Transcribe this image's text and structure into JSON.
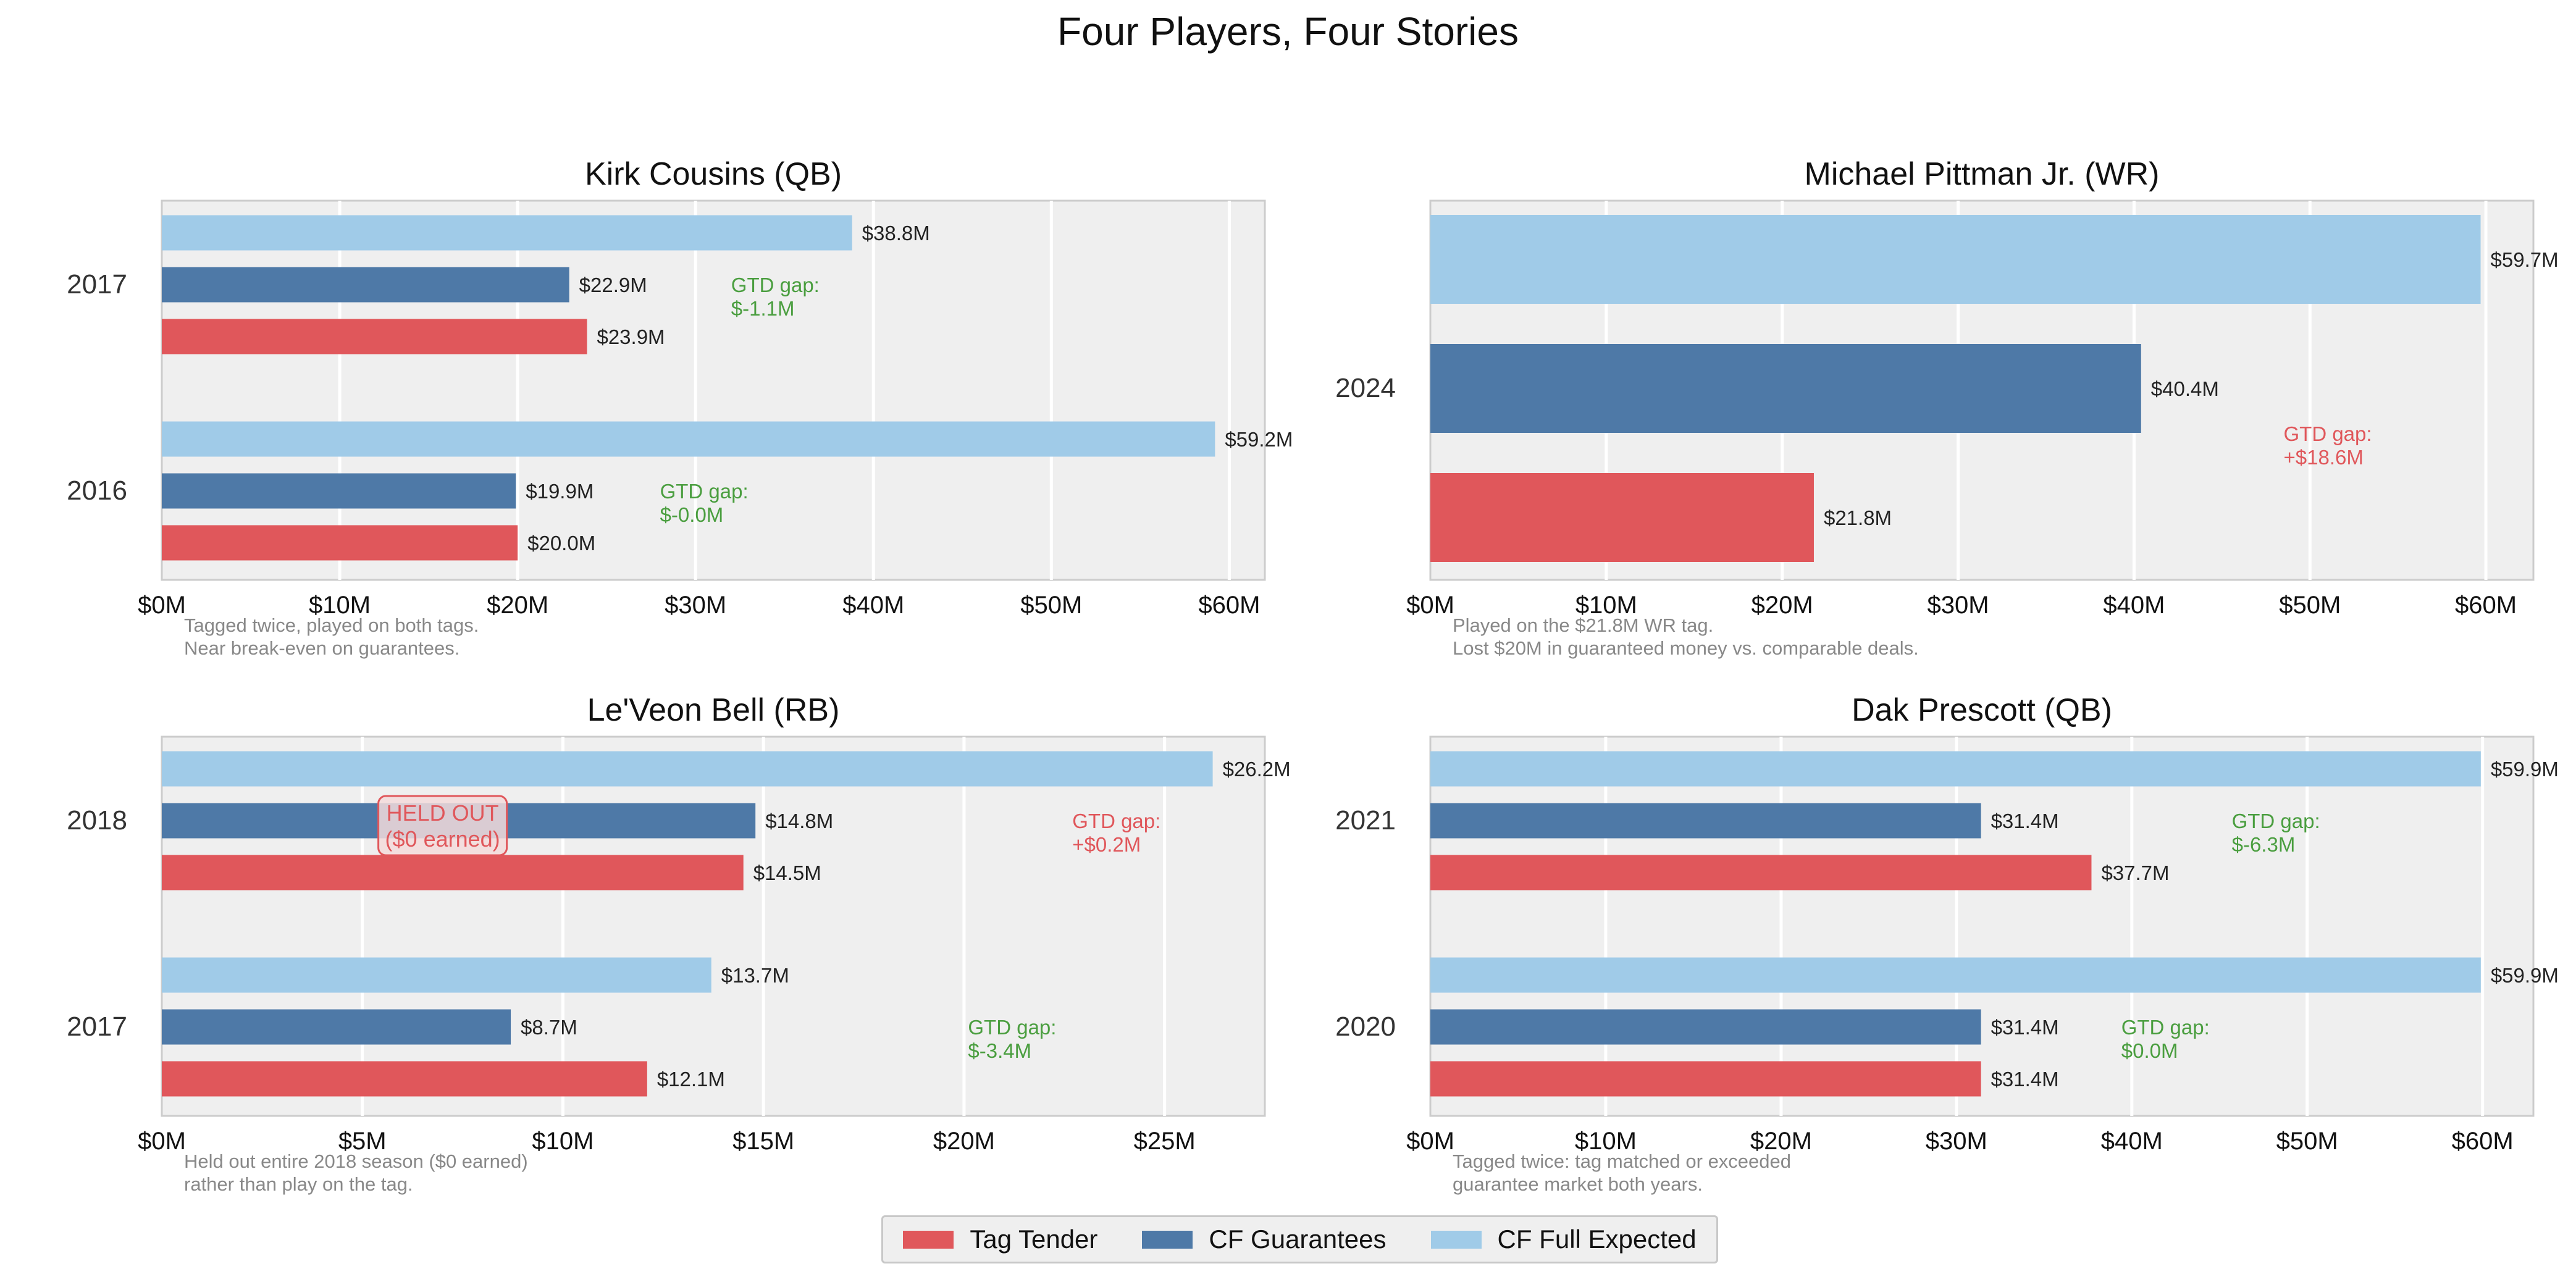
{
  "title": "Four Players, Four Stories",
  "colors": {
    "tag": "#e0575b",
    "guarantees": "#4e79a7",
    "full": "#a0cbe8",
    "gap_green": "#4a9e3f",
    "gap_red": "#e0575b",
    "panel_bg": "#efefef",
    "note": "#888888"
  },
  "legend": {
    "items": [
      {
        "label": "Tag Tender",
        "color": "#e0575b"
      },
      {
        "label": "CF Guarantees",
        "color": "#4e79a7"
      },
      {
        "label": "CF Full Expected",
        "color": "#a0cbe8"
      }
    ],
    "placement": "bottom-center"
  },
  "chart_data": [
    {
      "type": "bar",
      "orientation": "horizontal",
      "title": "Kirk Cousins (QB)",
      "categories": [
        "2016",
        "2017"
      ],
      "series": [
        {
          "name": "Tag Tender",
          "values": [
            20.0,
            23.9
          ],
          "labels": [
            "$20.0M",
            "$23.9M"
          ]
        },
        {
          "name": "CF Guarantees",
          "values": [
            19.9,
            22.9
          ],
          "labels": [
            "$19.9M",
            "$22.9M"
          ]
        },
        {
          "name": "CF Full Expected",
          "values": [
            59.2,
            38.8
          ],
          "labels": [
            "$59.2M",
            "$38.8M"
          ]
        }
      ],
      "xlim": [
        0,
        62
      ],
      "xticks": [
        0,
        10,
        20,
        30,
        40,
        50,
        60
      ],
      "xtick_labels": [
        "$0M",
        "$10M",
        "$20M",
        "$30M",
        "$40M",
        "$50M",
        "$60M"
      ],
      "grid": true,
      "annotations": [
        {
          "category": "2017",
          "x": 32,
          "line1": "GTD gap:",
          "line2": "$-1.1M",
          "tone": "green"
        },
        {
          "category": "2016",
          "x": 28,
          "line1": "GTD gap:",
          "line2": "$-0.0M",
          "tone": "green"
        }
      ],
      "note": [
        "Tagged twice, played on both tags.",
        "Near break-even on guarantees."
      ]
    },
    {
      "type": "bar",
      "orientation": "horizontal",
      "title": "Michael Pittman Jr. (WR)",
      "categories": [
        "2024"
      ],
      "series": [
        {
          "name": "Tag Tender",
          "values": [
            21.8
          ],
          "labels": [
            "$21.8M"
          ]
        },
        {
          "name": "CF Guarantees",
          "values": [
            40.4
          ],
          "labels": [
            "$40.4M"
          ]
        },
        {
          "name": "CF Full Expected",
          "values": [
            59.7
          ],
          "labels": [
            "$59.7M"
          ]
        }
      ],
      "xlim": [
        0,
        62.7
      ],
      "xticks": [
        0,
        10,
        20,
        30,
        40,
        50,
        60
      ],
      "xtick_labels": [
        "$0M",
        "$10M",
        "$20M",
        "$30M",
        "$40M",
        "$50M",
        "$60M"
      ],
      "grid": true,
      "annotations": [
        {
          "category": "2024",
          "x": 48.5,
          "line1": "GTD gap:",
          "line2": "+$18.6M",
          "tone": "red"
        }
      ],
      "note": [
        "Played on the $21.8M WR tag.",
        "Lost $20M in guaranteed money vs. comparable deals."
      ]
    },
    {
      "type": "bar",
      "orientation": "horizontal",
      "title": "Le'Veon Bell (RB)",
      "categories": [
        "2017",
        "2018"
      ],
      "series": [
        {
          "name": "Tag Tender",
          "values": [
            12.1,
            14.5
          ],
          "labels": [
            "$12.1M",
            "$14.5M"
          ]
        },
        {
          "name": "CF Guarantees",
          "values": [
            8.7,
            14.8
          ],
          "labels": [
            "$8.7M",
            "$14.8M"
          ]
        },
        {
          "name": "CF Full Expected",
          "values": [
            13.7,
            26.2
          ],
          "labels": [
            "$13.7M",
            "$26.2M"
          ]
        }
      ],
      "xlim": [
        0,
        27.5
      ],
      "xticks": [
        0,
        5,
        10,
        15,
        20,
        25
      ],
      "xtick_labels": [
        "$0M",
        "$5M",
        "$10M",
        "$15M",
        "$20M",
        "$25M"
      ],
      "grid": true,
      "annotations": [
        {
          "category": "2018",
          "x": 22.7,
          "line1": "GTD gap:",
          "line2": "+$0.2M",
          "tone": "red"
        },
        {
          "category": "2017",
          "x": 20.1,
          "line1": "GTD gap:",
          "line2": "$-3.4M",
          "tone": "green"
        }
      ],
      "callout": {
        "category": "2018",
        "x": 7.0,
        "line1": "HELD OUT",
        "line2": "($0 earned)"
      },
      "note": [
        "Held out entire 2018 season ($0 earned)",
        "rather than play on the tag."
      ]
    },
    {
      "type": "bar",
      "orientation": "horizontal",
      "title": "Dak Prescott (QB)",
      "categories": [
        "2020",
        "2021"
      ],
      "series": [
        {
          "name": "Tag Tender",
          "values": [
            31.4,
            37.7
          ],
          "labels": [
            "$31.4M",
            "$37.7M"
          ]
        },
        {
          "name": "CF Guarantees",
          "values": [
            31.4,
            31.4
          ],
          "labels": [
            "$31.4M",
            "$31.4M"
          ]
        },
        {
          "name": "CF Full Expected",
          "values": [
            59.9,
            59.9
          ],
          "labels": [
            "$59.9M",
            "$59.9M"
          ]
        }
      ],
      "xlim": [
        0,
        62.9
      ],
      "xticks": [
        0,
        10,
        20,
        30,
        40,
        50,
        60
      ],
      "xtick_labels": [
        "$0M",
        "$10M",
        "$20M",
        "$30M",
        "$40M",
        "$50M",
        "$60M"
      ],
      "grid": true,
      "annotations": [
        {
          "category": "2021",
          "x": 45.7,
          "line1": "GTD gap:",
          "line2": "$-6.3M",
          "tone": "green"
        },
        {
          "category": "2020",
          "x": 39.4,
          "line1": "GTD gap:",
          "line2": "$0.0M",
          "tone": "green"
        }
      ],
      "note": [
        "Tagged twice: tag matched or exceeded",
        "guarantee market both years."
      ]
    }
  ]
}
